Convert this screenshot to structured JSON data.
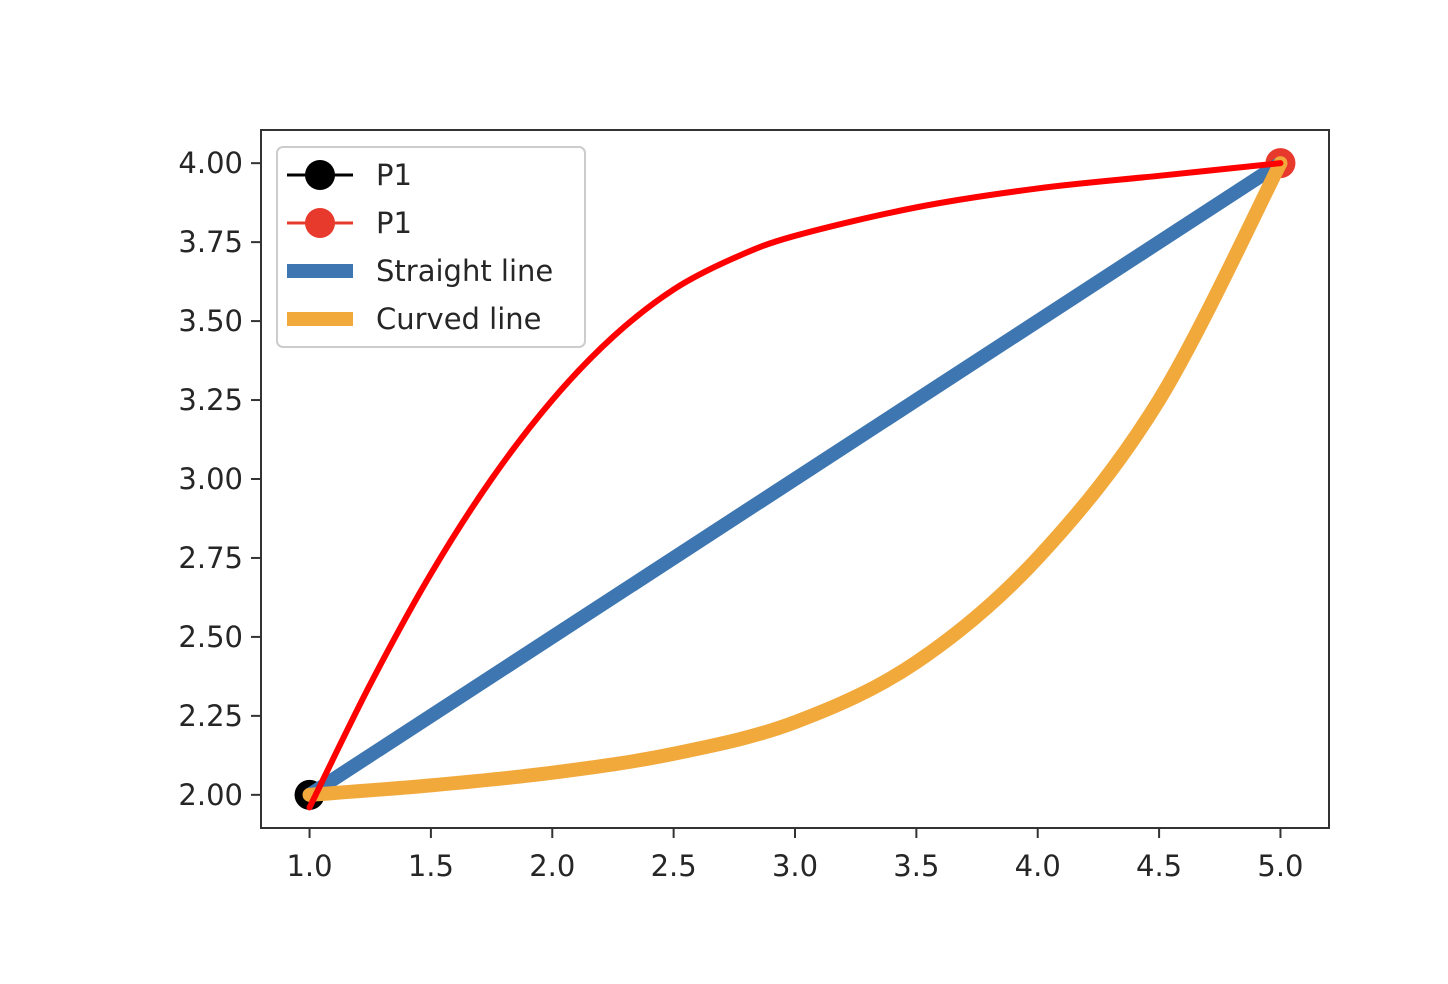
{
  "chart_data": {
    "type": "line",
    "xlim": [
      0.8,
      5.2
    ],
    "ylim": [
      1.895,
      4.105
    ],
    "xticks": [
      "1.0",
      "1.5",
      "2.0",
      "2.5",
      "3.0",
      "3.5",
      "4.0",
      "4.5",
      "5.0"
    ],
    "yticks": [
      "2.00",
      "2.25",
      "2.50",
      "2.75",
      "3.00",
      "3.25",
      "3.50",
      "3.75",
      "4.00"
    ],
    "grid": false,
    "legend_position": "top-left",
    "series": [
      {
        "name": "P1",
        "kind": "marker",
        "color": "#000000",
        "x": [
          1.0
        ],
        "y": [
          2.0
        ]
      },
      {
        "name": "P1",
        "kind": "marker",
        "color": "#e8392d",
        "x": [
          5.0
        ],
        "y": [
          4.0
        ]
      },
      {
        "name": "Straight line",
        "kind": "line",
        "color": "#3d76b0",
        "x": [
          1.0,
          5.0
        ],
        "y": [
          2.0,
          4.0
        ]
      },
      {
        "name": "Curved line",
        "kind": "line",
        "color": "#f2a93b",
        "x": [
          1.0,
          1.5,
          2.0,
          2.5,
          3.0,
          3.5,
          4.0,
          4.5,
          5.0
        ],
        "y": [
          2.0,
          2.03,
          2.07,
          2.13,
          2.23,
          2.42,
          2.75,
          3.25,
          4.0
        ]
      }
    ],
    "annotations": [
      {
        "kind": "line",
        "color": "#ff0000",
        "x": [
          1.0,
          1.25,
          1.5,
          1.75,
          2.0,
          2.25,
          2.5,
          2.75,
          3.0,
          3.5,
          4.0,
          4.5,
          5.0
        ],
        "y": [
          1.96,
          2.35,
          2.7,
          3.0,
          3.25,
          3.45,
          3.6,
          3.7,
          3.77,
          3.86,
          3.92,
          3.96,
          4.0
        ]
      }
    ]
  }
}
